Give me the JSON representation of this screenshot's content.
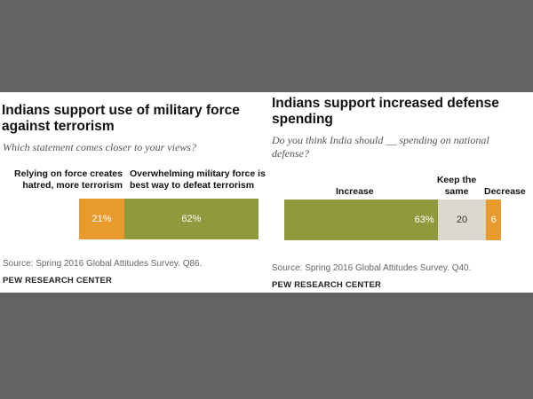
{
  "chart_data": [
    {
      "type": "bar",
      "orientation": "horizontal-stacked",
      "title": "Indians support use of military force against terrorism",
      "subtitle": "Which statement comes closer to your views?",
      "categories": [
        "Relying on force creates hatred, more terrorism",
        "Overwhelming military force is best way to defeat terrorism"
      ],
      "values": [
        21,
        62
      ],
      "value_labels": [
        "21%",
        "62%"
      ],
      "colors": [
        "#e89a2c",
        "#8e9a3c"
      ],
      "source": "Source: Spring 2016 Global Attitudes Survey. Q86.",
      "brand": "PEW RESEARCH CENTER"
    },
    {
      "type": "bar",
      "orientation": "horizontal-stacked",
      "title": "Indians support increased defense spending",
      "subtitle": "Do you think India should __ spending on national defense?",
      "categories": [
        "Increase",
        "Keep the same",
        "Decrease"
      ],
      "values": [
        63,
        20,
        6
      ],
      "value_labels": [
        "63%",
        "20",
        "6"
      ],
      "colors": [
        "#8e9a3c",
        "#ddd8cd",
        "#e89a2c"
      ],
      "source": "Source: Spring 2016 Global Attitudes Survey. Q40.",
      "brand": "PEW RESEARCH CENTER"
    }
  ]
}
